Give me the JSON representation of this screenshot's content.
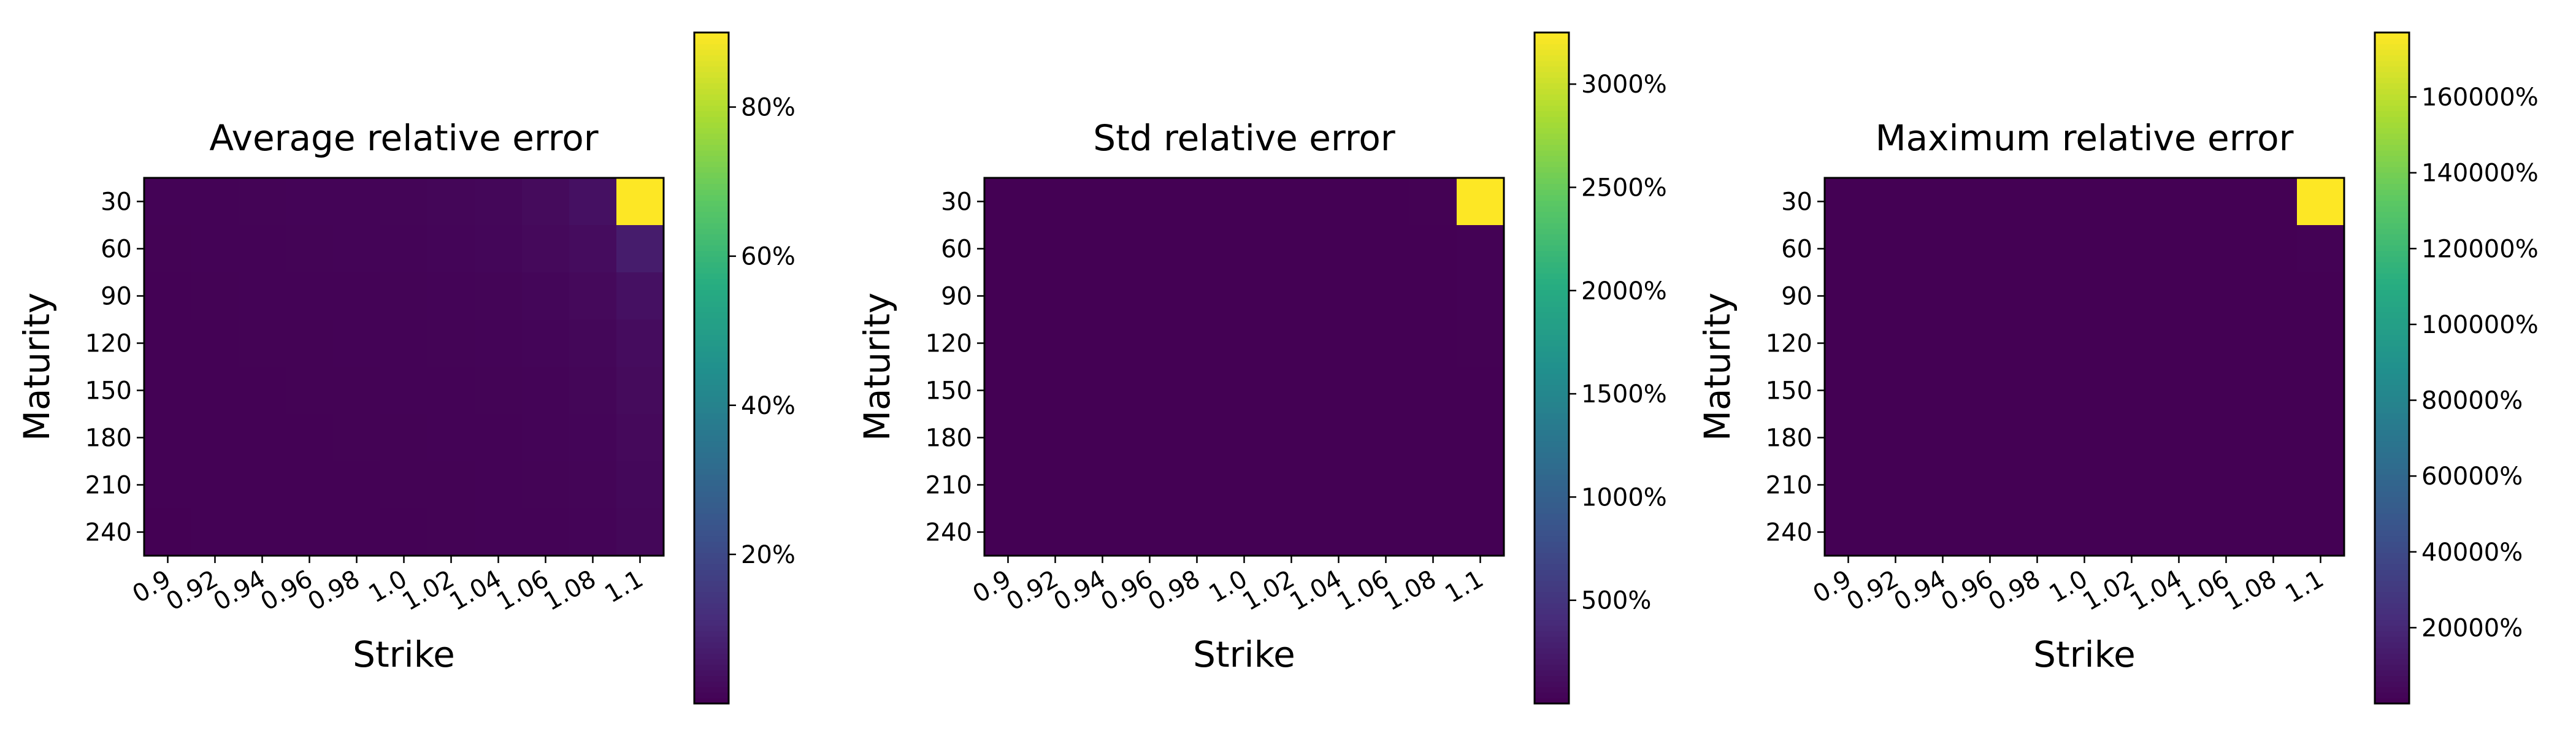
{
  "chart_data": [
    {
      "type": "heatmap",
      "title": "Average relative error",
      "xlabel": "Strike",
      "ylabel": "Maturity",
      "x_categories": [
        "0.9",
        "0.92",
        "0.94",
        "0.96",
        "0.98",
        "1.0",
        "1.02",
        "1.04",
        "1.06",
        "1.08",
        "1.1"
      ],
      "y_categories": [
        "30",
        "60",
        "90",
        "120",
        "150",
        "180",
        "210",
        "240"
      ],
      "values": [
        [
          0.5,
          0.6,
          0.7,
          0.8,
          0.9,
          1.0,
          1.3,
          1.6,
          2.5,
          4.0,
          90.0
        ],
        [
          0.4,
          0.5,
          0.6,
          0.7,
          0.8,
          0.9,
          1.1,
          1.4,
          2.0,
          3.0,
          7.0
        ],
        [
          0.3,
          0.4,
          0.5,
          0.5,
          0.6,
          0.7,
          0.8,
          1.0,
          1.4,
          2.0,
          4.0
        ],
        [
          0.3,
          0.3,
          0.4,
          0.4,
          0.5,
          0.6,
          0.7,
          0.8,
          1.1,
          1.6,
          3.0
        ],
        [
          0.2,
          0.3,
          0.3,
          0.4,
          0.4,
          0.5,
          0.6,
          0.7,
          0.9,
          1.3,
          2.5
        ],
        [
          0.2,
          0.2,
          0.3,
          0.3,
          0.4,
          0.4,
          0.5,
          0.6,
          0.8,
          1.1,
          2.0
        ],
        [
          0.2,
          0.2,
          0.2,
          0.3,
          0.3,
          0.4,
          0.4,
          0.5,
          0.7,
          1.0,
          1.8
        ],
        [
          0.1,
          0.2,
          0.2,
          0.2,
          0.3,
          0.3,
          0.4,
          0.5,
          0.6,
          0.9,
          1.6
        ]
      ],
      "colormap": "viridis",
      "colorbar": {
        "min": 0,
        "max": 90,
        "ticks": [
          20,
          40,
          60,
          80
        ],
        "tick_labels": [
          "20%",
          "40%",
          "60%",
          "80%"
        ]
      }
    },
    {
      "type": "heatmap",
      "title": "Std relative error",
      "xlabel": "Strike",
      "ylabel": "Maturity",
      "x_categories": [
        "0.9",
        "0.92",
        "0.94",
        "0.96",
        "0.98",
        "1.0",
        "1.02",
        "1.04",
        "1.06",
        "1.08",
        "1.1"
      ],
      "y_categories": [
        "30",
        "60",
        "90",
        "120",
        "150",
        "180",
        "210",
        "240"
      ],
      "values": [
        [
          1,
          1,
          1,
          1,
          1,
          1,
          1,
          2,
          3,
          5,
          3250
        ],
        [
          1,
          1,
          1,
          1,
          1,
          1,
          1,
          1,
          2,
          3,
          10
        ],
        [
          1,
          1,
          1,
          1,
          1,
          1,
          1,
          1,
          1,
          2,
          6
        ],
        [
          1,
          1,
          1,
          1,
          1,
          1,
          1,
          1,
          1,
          2,
          5
        ],
        [
          1,
          1,
          1,
          1,
          1,
          1,
          1,
          1,
          1,
          1,
          4
        ],
        [
          1,
          1,
          1,
          1,
          1,
          1,
          1,
          1,
          1,
          1,
          3
        ],
        [
          1,
          1,
          1,
          1,
          1,
          1,
          1,
          1,
          1,
          1,
          3
        ],
        [
          1,
          1,
          1,
          1,
          1,
          1,
          1,
          1,
          1,
          1,
          2
        ]
      ],
      "colormap": "viridis",
      "colorbar": {
        "min": 0,
        "max": 3250,
        "ticks": [
          500,
          1000,
          1500,
          2000,
          2500,
          3000
        ],
        "tick_labels": [
          "500%",
          "1000%",
          "1500%",
          "2000%",
          "2500%",
          "3000%"
        ]
      }
    },
    {
      "type": "heatmap",
      "title": "Maximum relative error",
      "xlabel": "Strike",
      "ylabel": "Maturity",
      "x_categories": [
        "0.9",
        "0.92",
        "0.94",
        "0.96",
        "0.98",
        "1.0",
        "1.02",
        "1.04",
        "1.06",
        "1.08",
        "1.1"
      ],
      "y_categories": [
        "30",
        "60",
        "90",
        "120",
        "150",
        "180",
        "210",
        "240"
      ],
      "values": [
        [
          5,
          5,
          6,
          7,
          8,
          10,
          15,
          25,
          50,
          120,
          177000
        ],
        [
          4,
          5,
          5,
          6,
          7,
          9,
          12,
          18,
          30,
          60,
          400
        ],
        [
          4,
          4,
          5,
          5,
          6,
          8,
          10,
          14,
          22,
          40,
          200
        ],
        [
          3,
          4,
          4,
          5,
          6,
          7,
          9,
          12,
          18,
          30,
          150
        ],
        [
          3,
          3,
          4,
          4,
          5,
          6,
          8,
          10,
          15,
          25,
          120
        ],
        [
          3,
          3,
          3,
          4,
          5,
          6,
          7,
          9,
          13,
          20,
          100
        ],
        [
          2,
          3,
          3,
          4,
          4,
          5,
          6,
          8,
          11,
          18,
          90
        ],
        [
          2,
          3,
          3,
          3,
          4,
          5,
          6,
          7,
          10,
          16,
          80
        ]
      ],
      "colormap": "viridis",
      "colorbar": {
        "min": 0,
        "max": 177000,
        "ticks": [
          20000,
          40000,
          60000,
          80000,
          100000,
          120000,
          140000,
          160000
        ],
        "tick_labels": [
          "20000%",
          "40000%",
          "60000%",
          "80000%",
          "100000%",
          "120000%",
          "140000%",
          "160000%"
        ]
      }
    }
  ]
}
